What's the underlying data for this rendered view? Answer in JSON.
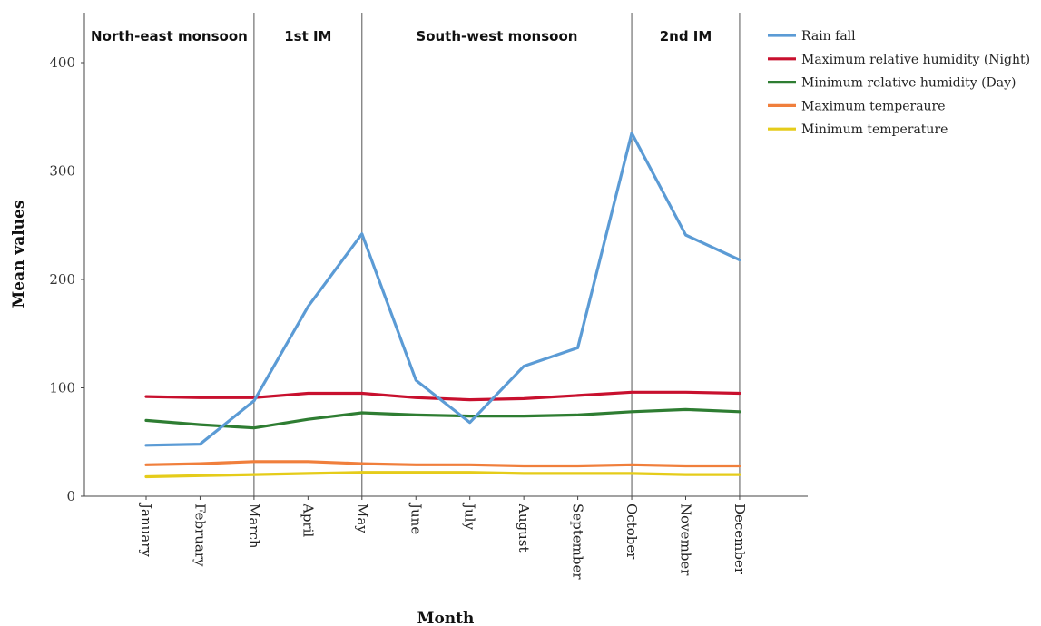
{
  "chart_data": {
    "type": "line",
    "xlabel": "Month",
    "ylabel": "Mean values",
    "ylim": [
      0,
      440
    ],
    "yticks": [
      0,
      100,
      200,
      300,
      400
    ],
    "categories": [
      "January",
      "February",
      "March",
      "April",
      "May",
      "June",
      "July",
      "August",
      "September",
      "October",
      "November",
      "December"
    ],
    "seasons": [
      {
        "label": "North-east monsoon",
        "from": "January",
        "to": "March"
      },
      {
        "label": "1st IM",
        "from": "March",
        "to": "May"
      },
      {
        "label": "South-west monsoon",
        "from": "May",
        "to": "October"
      },
      {
        "label": "2nd IM",
        "from": "October",
        "to": "December"
      }
    ],
    "series": [
      {
        "name": "Rain fall",
        "color": "#5b9bd5",
        "values": [
          47,
          48,
          88,
          175,
          242,
          107,
          68,
          120,
          137,
          335,
          241,
          218
        ]
      },
      {
        "name": "Maximum relative humidity (Night)",
        "color": "#c8102e",
        "values": [
          92,
          91,
          91,
          95,
          95,
          91,
          89,
          90,
          93,
          96,
          96,
          95
        ]
      },
      {
        "name": "Minimum relative humidity (Day)",
        "color": "#2e7d32",
        "values": [
          70,
          66,
          63,
          71,
          77,
          75,
          74,
          74,
          75,
          78,
          80,
          78
        ]
      },
      {
        "name": "Maximum temperaure",
        "color": "#f07f3c",
        "values": [
          29,
          30,
          32,
          32,
          30,
          29,
          29,
          28,
          28,
          29,
          28,
          28
        ]
      },
      {
        "name": "Minimum temperature",
        "color": "#e5cc1a",
        "values": [
          18,
          19,
          20,
          21,
          22,
          22,
          22,
          21,
          21,
          21,
          20,
          20
        ]
      }
    ],
    "grid": false,
    "legend": "right"
  }
}
